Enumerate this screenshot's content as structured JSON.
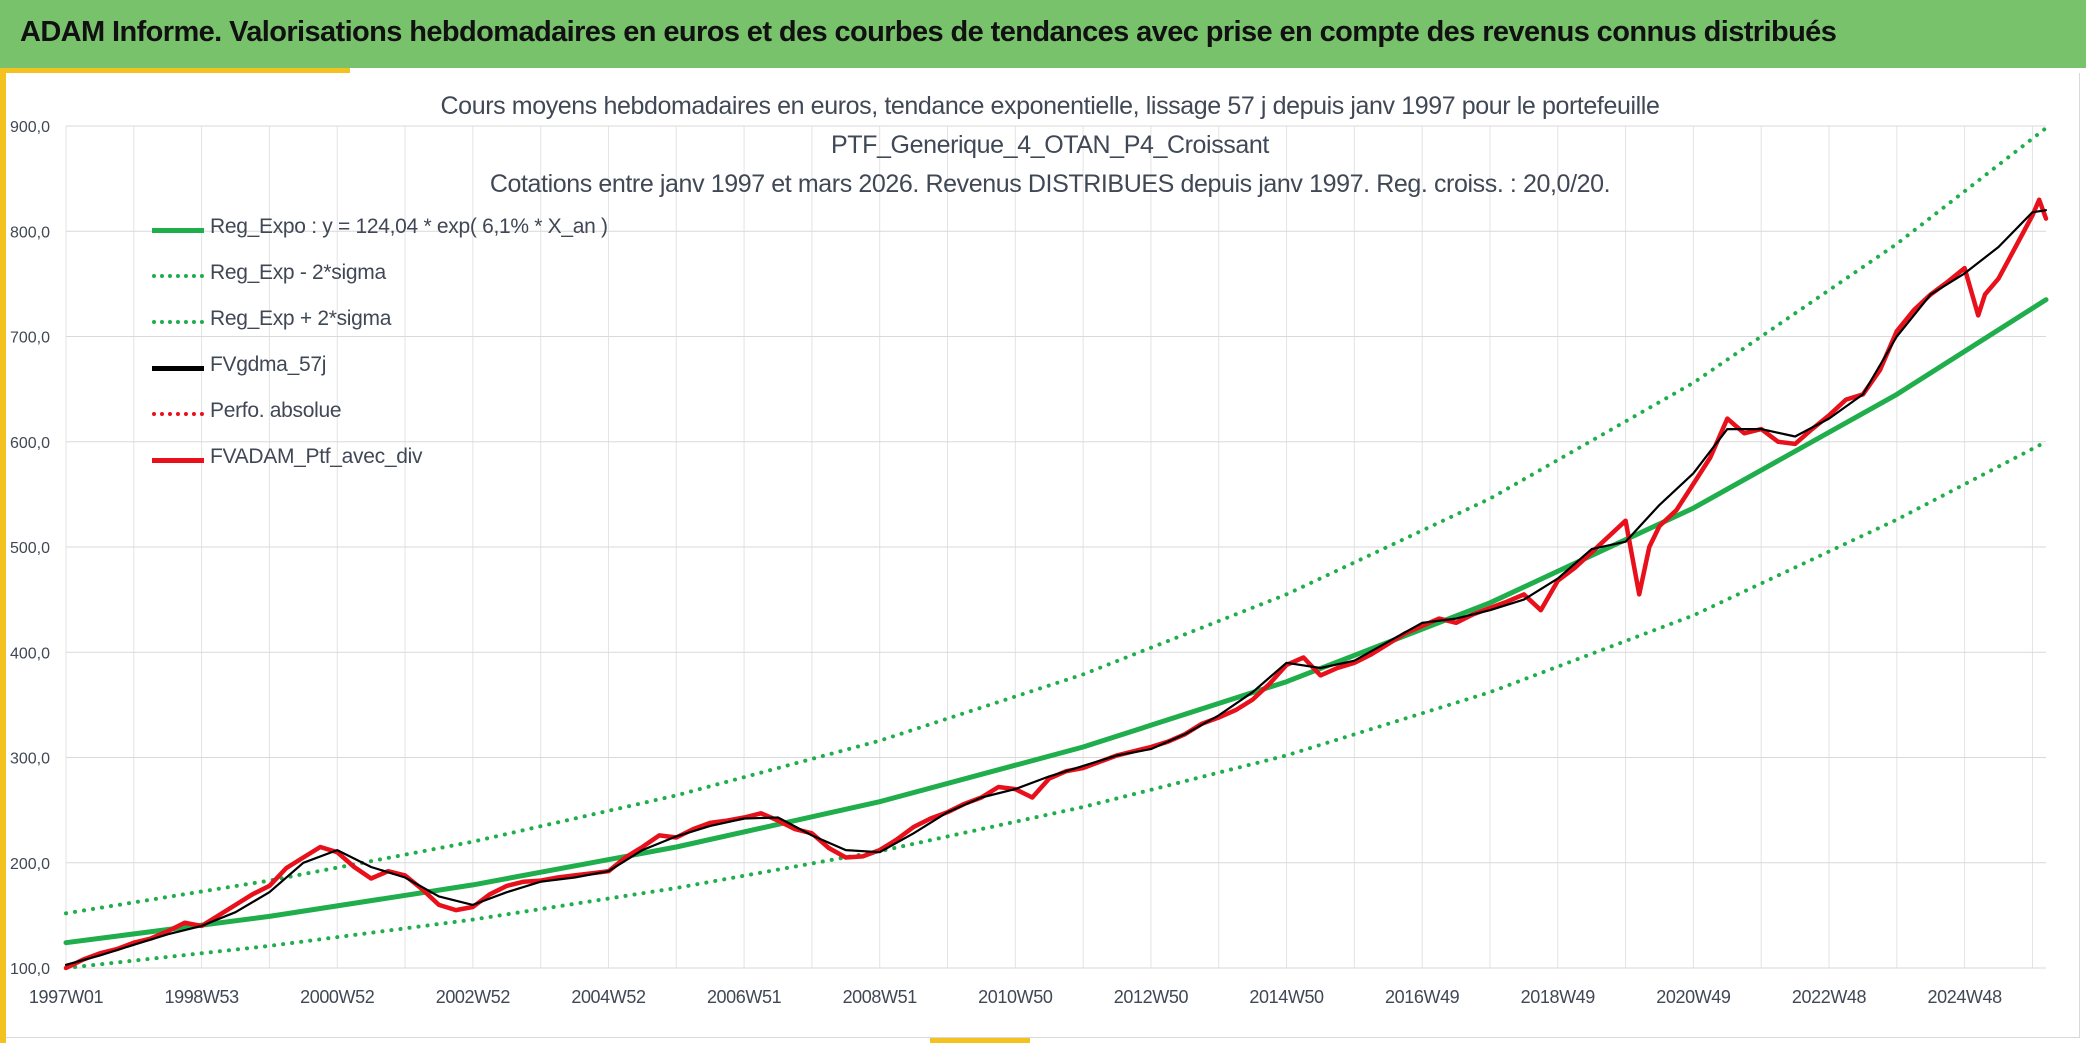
{
  "header": {
    "title": "ADAM Informe. Valorisations hebdomadaires en euros et des courbes de tendances avec prise en compte des revenus connus distribués"
  },
  "chart_data": {
    "type": "line",
    "title_lines": [
      "Cours moyens hebdomadaires en euros, tendance exponentielle, lissage 57 j depuis janv 1997 pour le portefeuille",
      "PTF_Generique_4_OTAN_P4_Croissant",
      "Cotations entre janv 1997 et mars 2026. Revenus DISTRIBUES depuis janv 1997. Reg. croiss. : 20,0/20."
    ],
    "xlabel": "",
    "ylabel": "",
    "ylim": [
      100,
      900
    ],
    "yticks": [
      "100,0",
      "200,0",
      "300,0",
      "400,0",
      "500,0",
      "600,0",
      "700,0",
      "800,0",
      "900,0"
    ],
    "xlim": [
      1997.0,
      2026.2
    ],
    "xticks": [
      {
        "label": "1997W01",
        "x": 1997.0
      },
      {
        "label": "1998W53",
        "x": 1999.0
      },
      {
        "label": "2000W52",
        "x": 2001.0
      },
      {
        "label": "2002W52",
        "x": 2003.0
      },
      {
        "label": "2004W52",
        "x": 2005.0
      },
      {
        "label": "2006W51",
        "x": 2007.0
      },
      {
        "label": "2008W51",
        "x": 2009.0
      },
      {
        "label": "2010W50",
        "x": 2011.0
      },
      {
        "label": "2012W50",
        "x": 2013.0
      },
      {
        "label": "2014W50",
        "x": 2015.0
      },
      {
        "label": "2016W49",
        "x": 2017.0
      },
      {
        "label": "2018W49",
        "x": 2019.0
      },
      {
        "label": "2020W49",
        "x": 2021.0
      },
      {
        "label": "2022W48",
        "x": 2023.0
      },
      {
        "label": "2024W48",
        "x": 2025.0
      }
    ],
    "grid": true,
    "legend_position": "top-left",
    "series": [
      {
        "name": "Reg_Expo : y = 124,04 * exp( 6,1% *  X_an )",
        "style": "solid",
        "color": "#1fae4b",
        "x": [
          1997.0,
          2000.0,
          2003.0,
          2006.0,
          2009.0,
          2012.0,
          2015.0,
          2018.0,
          2021.0,
          2024.0,
          2026.2
        ],
        "values": [
          124.0,
          149.0,
          179.0,
          215.0,
          258.0,
          310.0,
          372.0,
          447.0,
          537.0,
          645.0,
          735.0
        ]
      },
      {
        "name": "Reg_Exp - 2*sigma",
        "style": "dotted",
        "color": "#1fae4b",
        "x": [
          1997.0,
          2000.0,
          2003.0,
          2006.0,
          2009.0,
          2012.0,
          2015.0,
          2018.0,
          2021.0,
          2024.0,
          2026.2
        ],
        "values": [
          100.0,
          121.0,
          146.0,
          176.0,
          211.0,
          253.0,
          302.0,
          362.0,
          435.0,
          526.0,
          600.0
        ]
      },
      {
        "name": "Reg_Exp + 2*sigma",
        "style": "dotted",
        "color": "#1fae4b",
        "x": [
          1997.0,
          2000.0,
          2003.0,
          2006.0,
          2009.0,
          2012.0,
          2015.0,
          2018.0,
          2021.0,
          2024.0,
          2026.2
        ],
        "values": [
          152.0,
          183.0,
          220.0,
          264.0,
          316.0,
          379.0,
          455.0,
          546.0,
          656.0,
          788.0,
          898.0
        ]
      },
      {
        "name": "FVgdma_57j",
        "style": "solid",
        "color": "#000000",
        "x": [
          1997.0,
          1997.5,
          1998.0,
          1998.5,
          1999.0,
          1999.5,
          2000.0,
          2000.5,
          2001.0,
          2001.5,
          2002.0,
          2002.5,
          2003.0,
          2003.5,
          2004.0,
          2004.5,
          2005.0,
          2005.5,
          2006.0,
          2006.5,
          2007.0,
          2007.5,
          2008.0,
          2008.5,
          2009.0,
          2009.5,
          2010.0,
          2010.5,
          2011.0,
          2011.5,
          2012.0,
          2012.5,
          2013.0,
          2013.5,
          2014.0,
          2014.5,
          2015.0,
          2015.5,
          2016.0,
          2016.5,
          2017.0,
          2017.5,
          2018.0,
          2018.5,
          2019.0,
          2019.5,
          2020.0,
          2020.5,
          2021.0,
          2021.5,
          2022.0,
          2022.5,
          2023.0,
          2023.5,
          2024.0,
          2024.5,
          2025.0,
          2025.5,
          2026.0,
          2026.2
        ],
        "values": [
          103,
          112,
          122,
          132,
          140,
          153,
          172,
          200,
          212,
          196,
          186,
          168,
          160,
          172,
          182,
          186,
          192,
          212,
          225,
          235,
          242,
          243,
          226,
          212,
          210,
          228,
          248,
          262,
          270,
          282,
          292,
          302,
          308,
          322,
          340,
          362,
          390,
          385,
          392,
          410,
          428,
          432,
          440,
          450,
          470,
          498,
          505,
          540,
          570,
          612,
          612,
          605,
          622,
          645,
          700,
          740,
          760,
          785,
          818,
          820
        ]
      },
      {
        "name": "Perfo. absolue",
        "style": "dotted",
        "color": "#e8101a",
        "x": [],
        "values": []
      },
      {
        "name": "FVADAM_Ptf_avec_div",
        "style": "solid",
        "color": "#e8101a",
        "x": [
          1997.0,
          1997.25,
          1997.5,
          1997.75,
          1998.0,
          1998.25,
          1998.5,
          1998.75,
          1999.0,
          1999.25,
          1999.5,
          1999.75,
          2000.0,
          2000.25,
          2000.5,
          2000.75,
          2001.0,
          2001.25,
          2001.5,
          2001.75,
          2002.0,
          2002.25,
          2002.5,
          2002.75,
          2003.0,
          2003.25,
          2003.5,
          2003.75,
          2004.0,
          2004.25,
          2004.5,
          2004.75,
          2005.0,
          2005.25,
          2005.5,
          2005.75,
          2006.0,
          2006.25,
          2006.5,
          2006.75,
          2007.0,
          2007.25,
          2007.5,
          2007.75,
          2008.0,
          2008.25,
          2008.5,
          2008.75,
          2009.0,
          2009.25,
          2009.5,
          2009.75,
          2010.0,
          2010.25,
          2010.5,
          2010.75,
          2011.0,
          2011.25,
          2011.5,
          2011.75,
          2012.0,
          2012.25,
          2012.5,
          2012.75,
          2013.0,
          2013.25,
          2013.5,
          2013.75,
          2014.0,
          2014.25,
          2014.5,
          2014.75,
          2015.0,
          2015.25,
          2015.5,
          2015.75,
          2016.0,
          2016.25,
          2016.5,
          2016.75,
          2017.0,
          2017.25,
          2017.5,
          2017.75,
          2018.0,
          2018.25,
          2018.5,
          2018.75,
          2019.0,
          2019.25,
          2019.5,
          2019.75,
          2020.0,
          2020.2,
          2020.35,
          2020.5,
          2020.75,
          2021.0,
          2021.25,
          2021.5,
          2021.75,
          2022.0,
          2022.25,
          2022.5,
          2022.75,
          2023.0,
          2023.25,
          2023.5,
          2023.75,
          2024.0,
          2024.25,
          2024.5,
          2024.75,
          2025.0,
          2025.2,
          2025.3,
          2025.5,
          2025.75,
          2026.0,
          2026.1,
          2026.2
        ],
        "values": [
          100,
          108,
          114,
          118,
          124,
          128,
          135,
          143,
          140,
          150,
          160,
          170,
          178,
          195,
          205,
          215,
          210,
          196,
          185,
          192,
          188,
          175,
          160,
          155,
          158,
          170,
          178,
          182,
          183,
          186,
          188,
          190,
          192,
          205,
          215,
          226,
          224,
          232,
          238,
          240,
          243,
          247,
          240,
          232,
          228,
          214,
          205,
          206,
          212,
          222,
          234,
          242,
          248,
          256,
          262,
          272,
          270,
          262,
          280,
          287,
          290,
          296,
          302,
          306,
          310,
          315,
          322,
          332,
          338,
          345,
          355,
          370,
          388,
          395,
          378,
          385,
          390,
          398,
          408,
          418,
          425,
          432,
          428,
          436,
          442,
          448,
          455,
          440,
          468,
          480,
          495,
          510,
          525,
          455,
          500,
          520,
          535,
          560,
          585,
          622,
          608,
          612,
          600,
          598,
          612,
          625,
          640,
          645,
          668,
          705,
          725,
          740,
          752,
          765,
          720,
          740,
          755,
          785,
          815,
          830,
          812
        ]
      }
    ]
  }
}
